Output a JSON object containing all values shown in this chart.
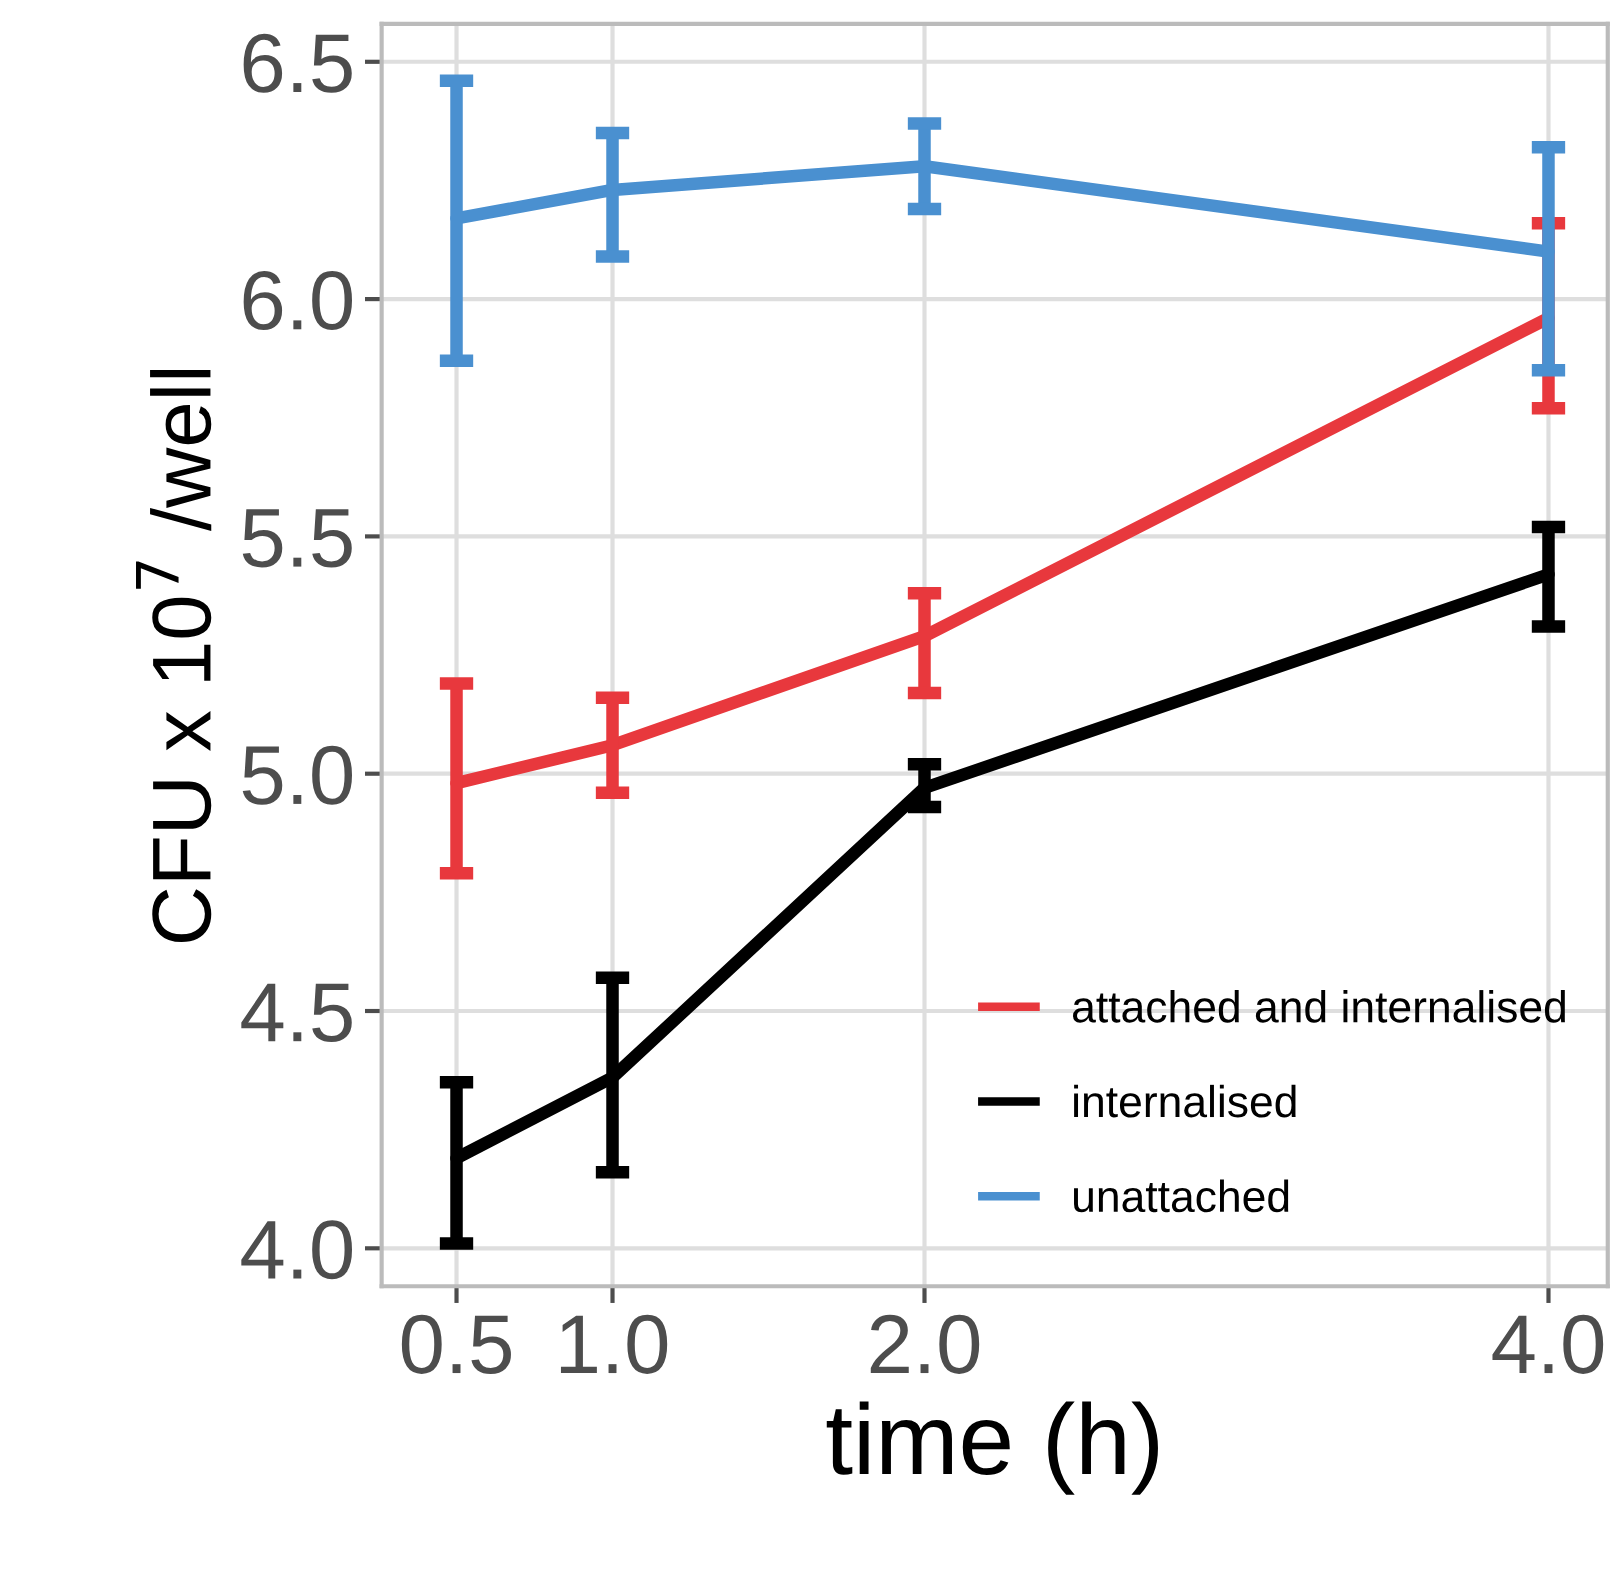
{
  "chart_data": {
    "type": "line",
    "xlabel": "time (h)",
    "ylabel": "CFU x 10$^{7}$ /well",
    "x": [
      0.5,
      1.0,
      2.0,
      4.0
    ],
    "series": [
      {
        "name": "attached and internalised",
        "color": "#e8383d",
        "values": [
          4.98,
          5.06,
          5.29,
          5.96
        ],
        "errors": [
          [
            4.79,
            5.19
          ],
          [
            4.96,
            5.16
          ],
          [
            5.17,
            5.38
          ],
          [
            5.77,
            6.16
          ]
        ]
      },
      {
        "name": "internalised",
        "color": "#000000",
        "values": [
          4.19,
          4.36,
          4.97,
          5.42
        ],
        "errors": [
          [
            4.01,
            4.35
          ],
          [
            4.16,
            4.57
          ],
          [
            4.93,
            5.02
          ],
          [
            5.31,
            5.52
          ]
        ]
      },
      {
        "name": "unattached",
        "color": "#4a90d0",
        "values": [
          6.17,
          6.23,
          6.28,
          6.1
        ],
        "errors": [
          [
            5.87,
            6.46
          ],
          [
            6.09,
            6.35
          ],
          [
            6.19,
            6.37
          ],
          [
            5.85,
            6.32
          ]
        ]
      }
    ],
    "xlim": [
      0.26,
      4.19
    ],
    "xticks": [
      {
        "value": 0.5,
        "label": "0.5"
      },
      {
        "value": 1.0,
        "label": "1.0"
      },
      {
        "value": 2.0,
        "label": "2.0"
      },
      {
        "value": 4.0,
        "label": "4.0"
      }
    ],
    "ylim": [
      3.92,
      6.58
    ],
    "yticks": [
      {
        "value": 4.0,
        "label": "4.0"
      },
      {
        "value": 4.5,
        "label": "4.5"
      },
      {
        "value": 5.0,
        "label": "5.0"
      },
      {
        "value": 5.5,
        "label": "5.5"
      },
      {
        "value": 6.0,
        "label": "6.0"
      },
      {
        "value": 6.5,
        "label": "6.5"
      }
    ],
    "grid": true,
    "legend": "bottom right",
    "marker": "none",
    "line_style": "solid"
  }
}
